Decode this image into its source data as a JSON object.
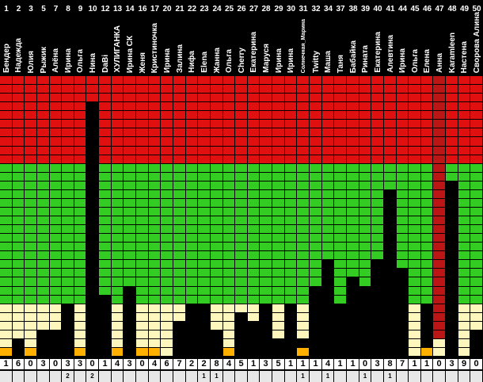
{
  "colors": {
    "red": "#e01010",
    "green": "#33cc22",
    "cream": "#fef7bd",
    "orange": "#ffb000",
    "dark": "#4a4a4a",
    "bar": "#000000",
    "highlight": "#bb1515",
    "grid": "#000000",
    "score_bg": "#ffffff",
    "extra_bg": "#e7e7e7"
  },
  "levels": {
    "rows": 32,
    "red_rows": 10,
    "green_rows": 16,
    "cream_rows": 6
  },
  "participants": [
    {
      "num": "1",
      "name": "Бендер",
      "score": "1",
      "extra": "",
      "bar_rows": 0,
      "orange_rows": 1,
      "highlight": false
    },
    {
      "num": "2",
      "name": "Надежда",
      "score": "6",
      "extra": "",
      "bar_rows": 2,
      "orange_rows": 0,
      "highlight": false
    },
    {
      "num": "3",
      "name": "Юлия",
      "score": "0",
      "extra": "",
      "bar_rows": 0,
      "orange_rows": 1,
      "highlight": false
    },
    {
      "num": "5",
      "name": "Рыжик",
      "score": "3",
      "extra": "",
      "bar_rows": 3,
      "orange_rows": 0,
      "highlight": false
    },
    {
      "num": "7",
      "name": "Алёна",
      "score": "0",
      "extra": "",
      "bar_rows": 3,
      "orange_rows": 0,
      "highlight": false
    },
    {
      "num": "8",
      "name": "Ирина",
      "score": "3",
      "extra": "2",
      "bar_rows": 6,
      "orange_rows": 0,
      "highlight": false
    },
    {
      "num": "9",
      "name": "Ольга",
      "score": "3",
      "extra": "",
      "bar_rows": 0,
      "orange_rows": 1,
      "highlight": false
    },
    {
      "num": "10",
      "name": "Нина",
      "score": "0",
      "extra": "2",
      "bar_rows": 29,
      "orange_rows": 0,
      "highlight": false
    },
    {
      "num": "12",
      "name": "DaBi",
      "score": "1",
      "extra": "",
      "bar_rows": 7,
      "orange_rows": 0,
      "highlight": false
    },
    {
      "num": "13",
      "name": "ХУЛИГАНКА",
      "score": "4",
      "extra": "",
      "bar_rows": 0,
      "orange_rows": 1,
      "highlight": false
    },
    {
      "num": "14",
      "name": "Ирина СК",
      "score": "3",
      "extra": "",
      "bar_rows": 8,
      "orange_rows": 0,
      "highlight": false
    },
    {
      "num": "16",
      "name": "Женя",
      "score": "0",
      "extra": "",
      "bar_rows": 0,
      "orange_rows": 1,
      "highlight": false
    },
    {
      "num": "17",
      "name": "Кристиночка",
      "score": "4",
      "extra": "",
      "bar_rows": 0,
      "orange_rows": 1,
      "highlight": false
    },
    {
      "num": "20",
      "name": "Ирина",
      "score": "6",
      "extra": "",
      "bar_rows": 0,
      "orange_rows": 0,
      "highlight": false
    },
    {
      "num": "21",
      "name": "Залина",
      "score": "7",
      "extra": "",
      "bar_rows": 4,
      "orange_rows": 0,
      "highlight": false
    },
    {
      "num": "22",
      "name": "Нифа",
      "score": "2",
      "extra": "",
      "bar_rows": 6,
      "orange_rows": 0,
      "highlight": false
    },
    {
      "num": "23",
      "name": "Elena",
      "score": "2",
      "extra": "1",
      "bar_rows": 6,
      "orange_rows": 0,
      "highlight": false
    },
    {
      "num": "24",
      "name": "Жанна",
      "score": "8",
      "extra": "1",
      "bar_rows": 3,
      "orange_rows": 0,
      "highlight": false
    },
    {
      "num": "25",
      "name": "Ольга",
      "score": "4",
      "extra": "",
      "bar_rows": 0,
      "orange_rows": 1,
      "highlight": false
    },
    {
      "num": "26",
      "name": "Cherry",
      "score": "5",
      "extra": "",
      "bar_rows": 5,
      "orange_rows": 0,
      "highlight": false
    },
    {
      "num": "27",
      "name": "Екатерина",
      "score": "1",
      "extra": "",
      "bar_rows": 4,
      "orange_rows": 0,
      "highlight": false
    },
    {
      "num": "28",
      "name": "Маруся",
      "score": "3",
      "extra": "",
      "bar_rows": 6,
      "orange_rows": 0,
      "highlight": false
    },
    {
      "num": "29",
      "name": "Ирина",
      "score": "5",
      "extra": "",
      "bar_rows": 2,
      "orange_rows": 0,
      "highlight": false
    },
    {
      "num": "30",
      "name": "Ирина",
      "score": "1",
      "extra": "",
      "bar_rows": 6,
      "orange_rows": 0,
      "highlight": false
    },
    {
      "num": "31",
      "name": "Солнечная_Марина",
      "score": "1",
      "extra": "1",
      "bar_rows": 1,
      "orange_rows": 1,
      "highlight": false
    },
    {
      "num": "32",
      "name": "Twitty",
      "score": "1",
      "extra": "",
      "bar_rows": 8,
      "orange_rows": 0,
      "highlight": false
    },
    {
      "num": "34",
      "name": "Маша",
      "score": "4",
      "extra": "1",
      "bar_rows": 11,
      "orange_rows": 0,
      "highlight": false
    },
    {
      "num": "37",
      "name": "Таня",
      "score": "1",
      "extra": "",
      "bar_rows": 6,
      "orange_rows": 0,
      "highlight": false
    },
    {
      "num": "38",
      "name": "Бабайка",
      "score": "1",
      "extra": "",
      "bar_rows": 9,
      "orange_rows": 0,
      "highlight": false
    },
    {
      "num": "39",
      "name": "Рината",
      "score": "0",
      "extra": "1",
      "bar_rows": 8,
      "orange_rows": 0,
      "highlight": false
    },
    {
      "num": "40",
      "name": "Екатерина",
      "score": "3",
      "extra": "",
      "bar_rows": 11,
      "orange_rows": 0,
      "highlight": false
    },
    {
      "num": "41",
      "name": "Алевтина",
      "score": "8",
      "extra": "1",
      "bar_rows": 19,
      "orange_rows": 0,
      "highlight": false
    },
    {
      "num": "44",
      "name": "Ирина",
      "score": "7",
      "extra": "",
      "bar_rows": 10,
      "orange_rows": 0,
      "highlight": false
    },
    {
      "num": "45",
      "name": "Ольга",
      "score": "1",
      "extra": "",
      "bar_rows": 0,
      "orange_rows": 0,
      "highlight": false
    },
    {
      "num": "46",
      "name": "Елена",
      "score": "1",
      "extra": "",
      "bar_rows": 5,
      "orange_rows": 1,
      "highlight": false
    },
    {
      "num": "47",
      "name": "Анна",
      "score": "0",
      "extra": "",
      "bar_rows": 0,
      "orange_rows": 0,
      "highlight": true
    },
    {
      "num": "48",
      "name": "Karamleen",
      "score": "3",
      "extra": "",
      "bar_rows": 20,
      "orange_rows": 0,
      "highlight": false
    },
    {
      "num": "49",
      "name": "Настена",
      "score": "9",
      "extra": "",
      "bar_rows": 0,
      "orange_rows": 0,
      "highlight": false
    },
    {
      "num": "50",
      "name": "Сворова Алина",
      "score": "0",
      "extra": "",
      "bar_rows": 3,
      "orange_rows": 0,
      "highlight": false
    }
  ]
}
